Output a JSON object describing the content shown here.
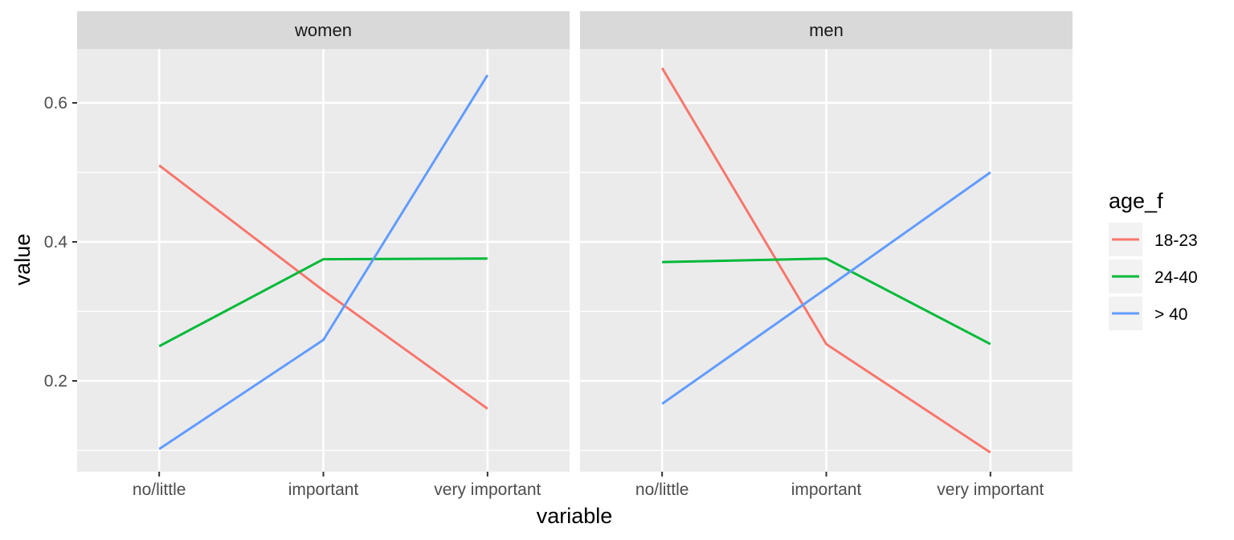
{
  "chart_data": {
    "type": "line",
    "facets": [
      "women",
      "men"
    ],
    "categories": [
      "no/little",
      "important",
      "very important"
    ],
    "xlabel": "variable",
    "ylabel": "value",
    "ylim": [
      0.1,
      0.67
    ],
    "yticks": [
      0.2,
      0.4,
      0.6
    ],
    "ytick_labels": [
      "0.2",
      "0.4",
      "0.6"
    ],
    "grid": true,
    "legend": {
      "title": "age_f",
      "position": "right"
    },
    "series": [
      {
        "name": "18-23",
        "color": "#F8766D",
        "values": {
          "women": [
            0.51,
            0.33,
            0.16
          ],
          "men": [
            0.65,
            0.253,
            0.097
          ]
        }
      },
      {
        "name": "24-40",
        "color": "#00BA38",
        "values": {
          "women": [
            0.25,
            0.375,
            0.376
          ],
          "men": [
            0.371,
            0.376,
            0.253
          ]
        }
      },
      {
        "name": "> 40",
        "color": "#619CFF",
        "values": {
          "women": [
            0.102,
            0.259,
            0.64
          ],
          "men": [
            0.167,
            0.333,
            0.5
          ]
        }
      }
    ]
  }
}
